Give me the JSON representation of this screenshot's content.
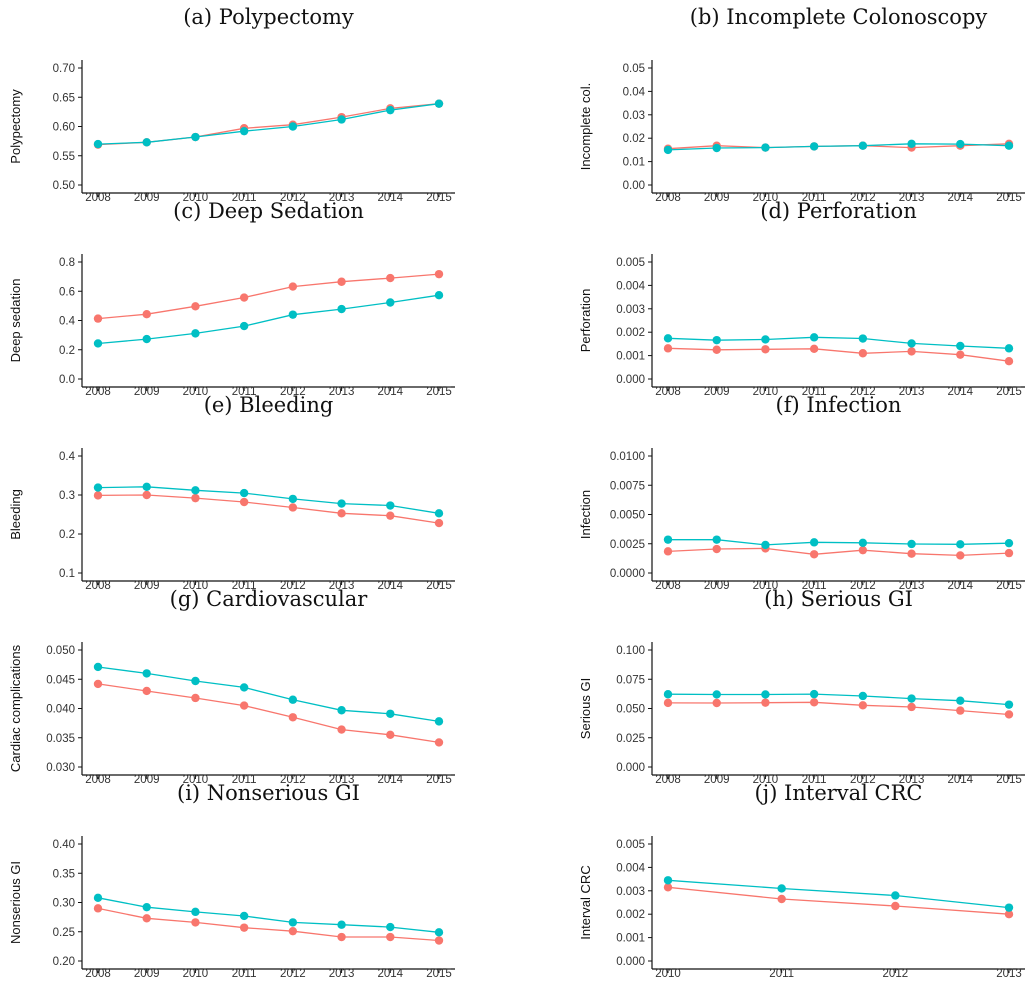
{
  "colors": {
    "series_a": "#F8766D",
    "series_b": "#00BFC4"
  },
  "chart_data": [
    {
      "type": "line",
      "title": "(a) Polypectomy",
      "ylabel": "Polypectomy",
      "x": [
        "2008",
        "2009",
        "2010",
        "2011",
        "2012",
        "2013",
        "2014",
        "2015"
      ],
      "ylim": [
        0.5,
        0.7
      ],
      "yticks": [
        "0.50",
        "0.55",
        "0.60",
        "0.65",
        "0.70"
      ],
      "series": [
        {
          "values": [
            0.569,
            0.573,
            0.582,
            0.597,
            0.603,
            0.616,
            0.631,
            0.639
          ]
        },
        {
          "values": [
            0.57,
            0.573,
            0.582,
            0.592,
            0.6,
            0.612,
            0.628,
            0.639
          ]
        }
      ]
    },
    {
      "type": "line",
      "title": "(b) Incomplete Colonoscopy",
      "ylabel": "Incomplete col.",
      "x": [
        "2008",
        "2009",
        "2010",
        "2011",
        "2012",
        "2013",
        "2014",
        "2015"
      ],
      "ylim": [
        0,
        0.05
      ],
      "yticks": [
        "0.00",
        "0.01",
        "0.02",
        "0.03",
        "0.04",
        "0.05"
      ],
      "series": [
        {
          "values": [
            0.0155,
            0.0168,
            0.016,
            0.0165,
            0.0168,
            0.016,
            0.0168,
            0.0176
          ]
        },
        {
          "values": [
            0.015,
            0.0158,
            0.016,
            0.0165,
            0.0168,
            0.0176,
            0.0175,
            0.0168
          ]
        }
      ]
    },
    {
      "type": "line",
      "title": "(c) Deep Sedation",
      "ylabel": "Deep sedation",
      "x": [
        "2008",
        "2009",
        "2010",
        "2011",
        "2012",
        "2013",
        "2014",
        "2015"
      ],
      "ylim": [
        0,
        0.8
      ],
      "yticks": [
        "0.0",
        "0.2",
        "0.4",
        "0.6",
        "0.8"
      ],
      "series": [
        {
          "values": [
            0.413,
            0.443,
            0.497,
            0.557,
            0.632,
            0.665,
            0.69,
            0.717
          ]
        },
        {
          "values": [
            0.243,
            0.273,
            0.312,
            0.362,
            0.44,
            0.478,
            0.523,
            0.573
          ]
        }
      ]
    },
    {
      "type": "line",
      "title": "(d) Perforation",
      "ylabel": "Perforation",
      "x": [
        "2008",
        "2009",
        "2010",
        "2011",
        "2012",
        "2013",
        "2014",
        "2015"
      ],
      "ylim": [
        0,
        0.005
      ],
      "yticks": [
        "0.000",
        "0.001",
        "0.002",
        "0.003",
        "0.004",
        "0.005"
      ],
      "series": [
        {
          "values": [
            0.00131,
            0.00125,
            0.00127,
            0.00129,
            0.0011,
            0.00118,
            0.00104,
            0.00076
          ]
        },
        {
          "values": [
            0.00174,
            0.00166,
            0.00169,
            0.00178,
            0.00173,
            0.00152,
            0.00141,
            0.00131
          ]
        }
      ]
    },
    {
      "type": "line",
      "title": "(e) Bleeding",
      "ylabel": "Bleeding",
      "x": [
        "2008",
        "2009",
        "2010",
        "2011",
        "2012",
        "2013",
        "2014",
        "2015"
      ],
      "ylim": [
        0.1,
        0.4
      ],
      "yticks": [
        "0.1",
        "0.2",
        "0.3",
        "0.4"
      ],
      "series": [
        {
          "values": [
            0.299,
            0.3,
            0.292,
            0.282,
            0.268,
            0.253,
            0.247,
            0.228
          ]
        },
        {
          "values": [
            0.319,
            0.321,
            0.312,
            0.305,
            0.29,
            0.278,
            0.273,
            0.253
          ]
        }
      ]
    },
    {
      "type": "line",
      "title": "(f) Infection",
      "ylabel": "Infection",
      "x": [
        "2008",
        "2009",
        "2010",
        "2011",
        "2012",
        "2013",
        "2014",
        "2015"
      ],
      "ylim": [
        0,
        0.01
      ],
      "yticks": [
        "0.0000",
        "0.0025",
        "0.0050",
        "0.0075",
        "0.0100"
      ],
      "series": [
        {
          "values": [
            0.00185,
            0.00205,
            0.0021,
            0.0016,
            0.00195,
            0.00165,
            0.0015,
            0.0017
          ]
        },
        {
          "values": [
            0.00285,
            0.00285,
            0.0024,
            0.00262,
            0.00258,
            0.00248,
            0.00245,
            0.00255
          ]
        }
      ]
    },
    {
      "type": "line",
      "title": "(g) Cardiovascular",
      "ylabel": "Cardiac complications",
      "x": [
        "2008",
        "2009",
        "2010",
        "2011",
        "2012",
        "2013",
        "2014",
        "2015"
      ],
      "ylim": [
        0.03,
        0.05
      ],
      "yticks": [
        "0.030",
        "0.035",
        "0.040",
        "0.045",
        "0.050"
      ],
      "series": [
        {
          "values": [
            0.0442,
            0.043,
            0.0418,
            0.0405,
            0.0385,
            0.0364,
            0.0355,
            0.0342
          ]
        },
        {
          "values": [
            0.0471,
            0.046,
            0.0447,
            0.0436,
            0.0415,
            0.0397,
            0.0391,
            0.0378
          ]
        }
      ]
    },
    {
      "type": "line",
      "title": "(h) Serious GI",
      "ylabel": "Serious GI",
      "x": [
        "2008",
        "2009",
        "2010",
        "2011",
        "2012",
        "2013",
        "2014",
        "2015"
      ],
      "ylim": [
        0,
        0.1
      ],
      "yticks": [
        "0.000",
        "0.025",
        "0.050",
        "0.075",
        "0.100"
      ],
      "series": [
        {
          "values": [
            0.0548,
            0.0547,
            0.055,
            0.0553,
            0.0527,
            0.0513,
            0.0482,
            0.0449
          ]
        },
        {
          "values": [
            0.0622,
            0.062,
            0.062,
            0.0623,
            0.0607,
            0.0585,
            0.0567,
            0.0533
          ]
        }
      ]
    },
    {
      "type": "line",
      "title": "(i) Nonserious GI",
      "ylabel": "Nonserious GI",
      "x": [
        "2008",
        "2009",
        "2010",
        "2011",
        "2012",
        "2013",
        "2014",
        "2015"
      ],
      "ylim": [
        0.2,
        0.4
      ],
      "yticks": [
        "0.20",
        "0.25",
        "0.30",
        "0.35",
        "0.40"
      ],
      "series": [
        {
          "values": [
            0.29,
            0.273,
            0.266,
            0.257,
            0.251,
            0.241,
            0.241,
            0.235
          ]
        },
        {
          "values": [
            0.308,
            0.292,
            0.284,
            0.277,
            0.266,
            0.262,
            0.258,
            0.249
          ]
        }
      ]
    },
    {
      "type": "line",
      "title": "(j) Interval CRC",
      "ylabel": "Interval CRC",
      "x": [
        "2010",
        "2011",
        "2012",
        "2013"
      ],
      "ylim": [
        0,
        0.005
      ],
      "yticks": [
        "0.000",
        "0.001",
        "0.002",
        "0.003",
        "0.004",
        "0.005"
      ],
      "series": [
        {
          "values": [
            0.00315,
            0.00265,
            0.00235,
            0.002
          ]
        },
        {
          "values": [
            0.00345,
            0.0031,
            0.0028,
            0.00228
          ]
        }
      ]
    }
  ]
}
